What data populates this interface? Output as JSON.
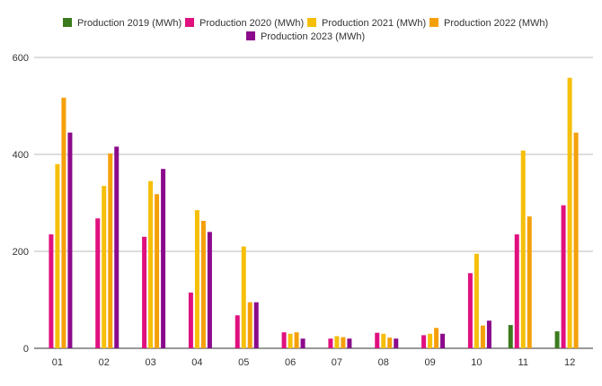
{
  "chart_data": {
    "type": "bar",
    "title": "",
    "xlabel": "",
    "ylabel": "",
    "ylim": [
      0,
      600
    ],
    "yticks": [
      0,
      200,
      400,
      600
    ],
    "grid": true,
    "legend_position": "top",
    "categories": [
      "01",
      "02",
      "03",
      "04",
      "05",
      "06",
      "07",
      "08",
      "09",
      "10",
      "11",
      "12"
    ],
    "series": [
      {
        "name": "Production 2019 (MWh)",
        "color": "#3c7a1e",
        "values": [
          null,
          null,
          null,
          null,
          null,
          null,
          null,
          null,
          null,
          null,
          48,
          35
        ]
      },
      {
        "name": "Production 2020 (MWh)",
        "color": "#e0107f",
        "values": [
          235,
          268,
          230,
          115,
          68,
          33,
          20,
          32,
          27,
          155,
          235,
          295
        ]
      },
      {
        "name": "Production 2021 (MWh)",
        "color": "#f5bf0a",
        "values": [
          380,
          335,
          345,
          285,
          210,
          30,
          25,
          30,
          30,
          195,
          408,
          558
        ]
      },
      {
        "name": "Production 2022 (MWh)",
        "color": "#f5a00a",
        "values": [
          517,
          402,
          318,
          263,
          95,
          33,
          23,
          22,
          42,
          47,
          272,
          445
        ]
      },
      {
        "name": "Production 2023 (MWh)",
        "color": "#8b0a8b",
        "values": [
          445,
          416,
          370,
          240,
          95,
          20,
          20,
          20,
          30,
          57,
          null,
          null
        ]
      }
    ]
  }
}
